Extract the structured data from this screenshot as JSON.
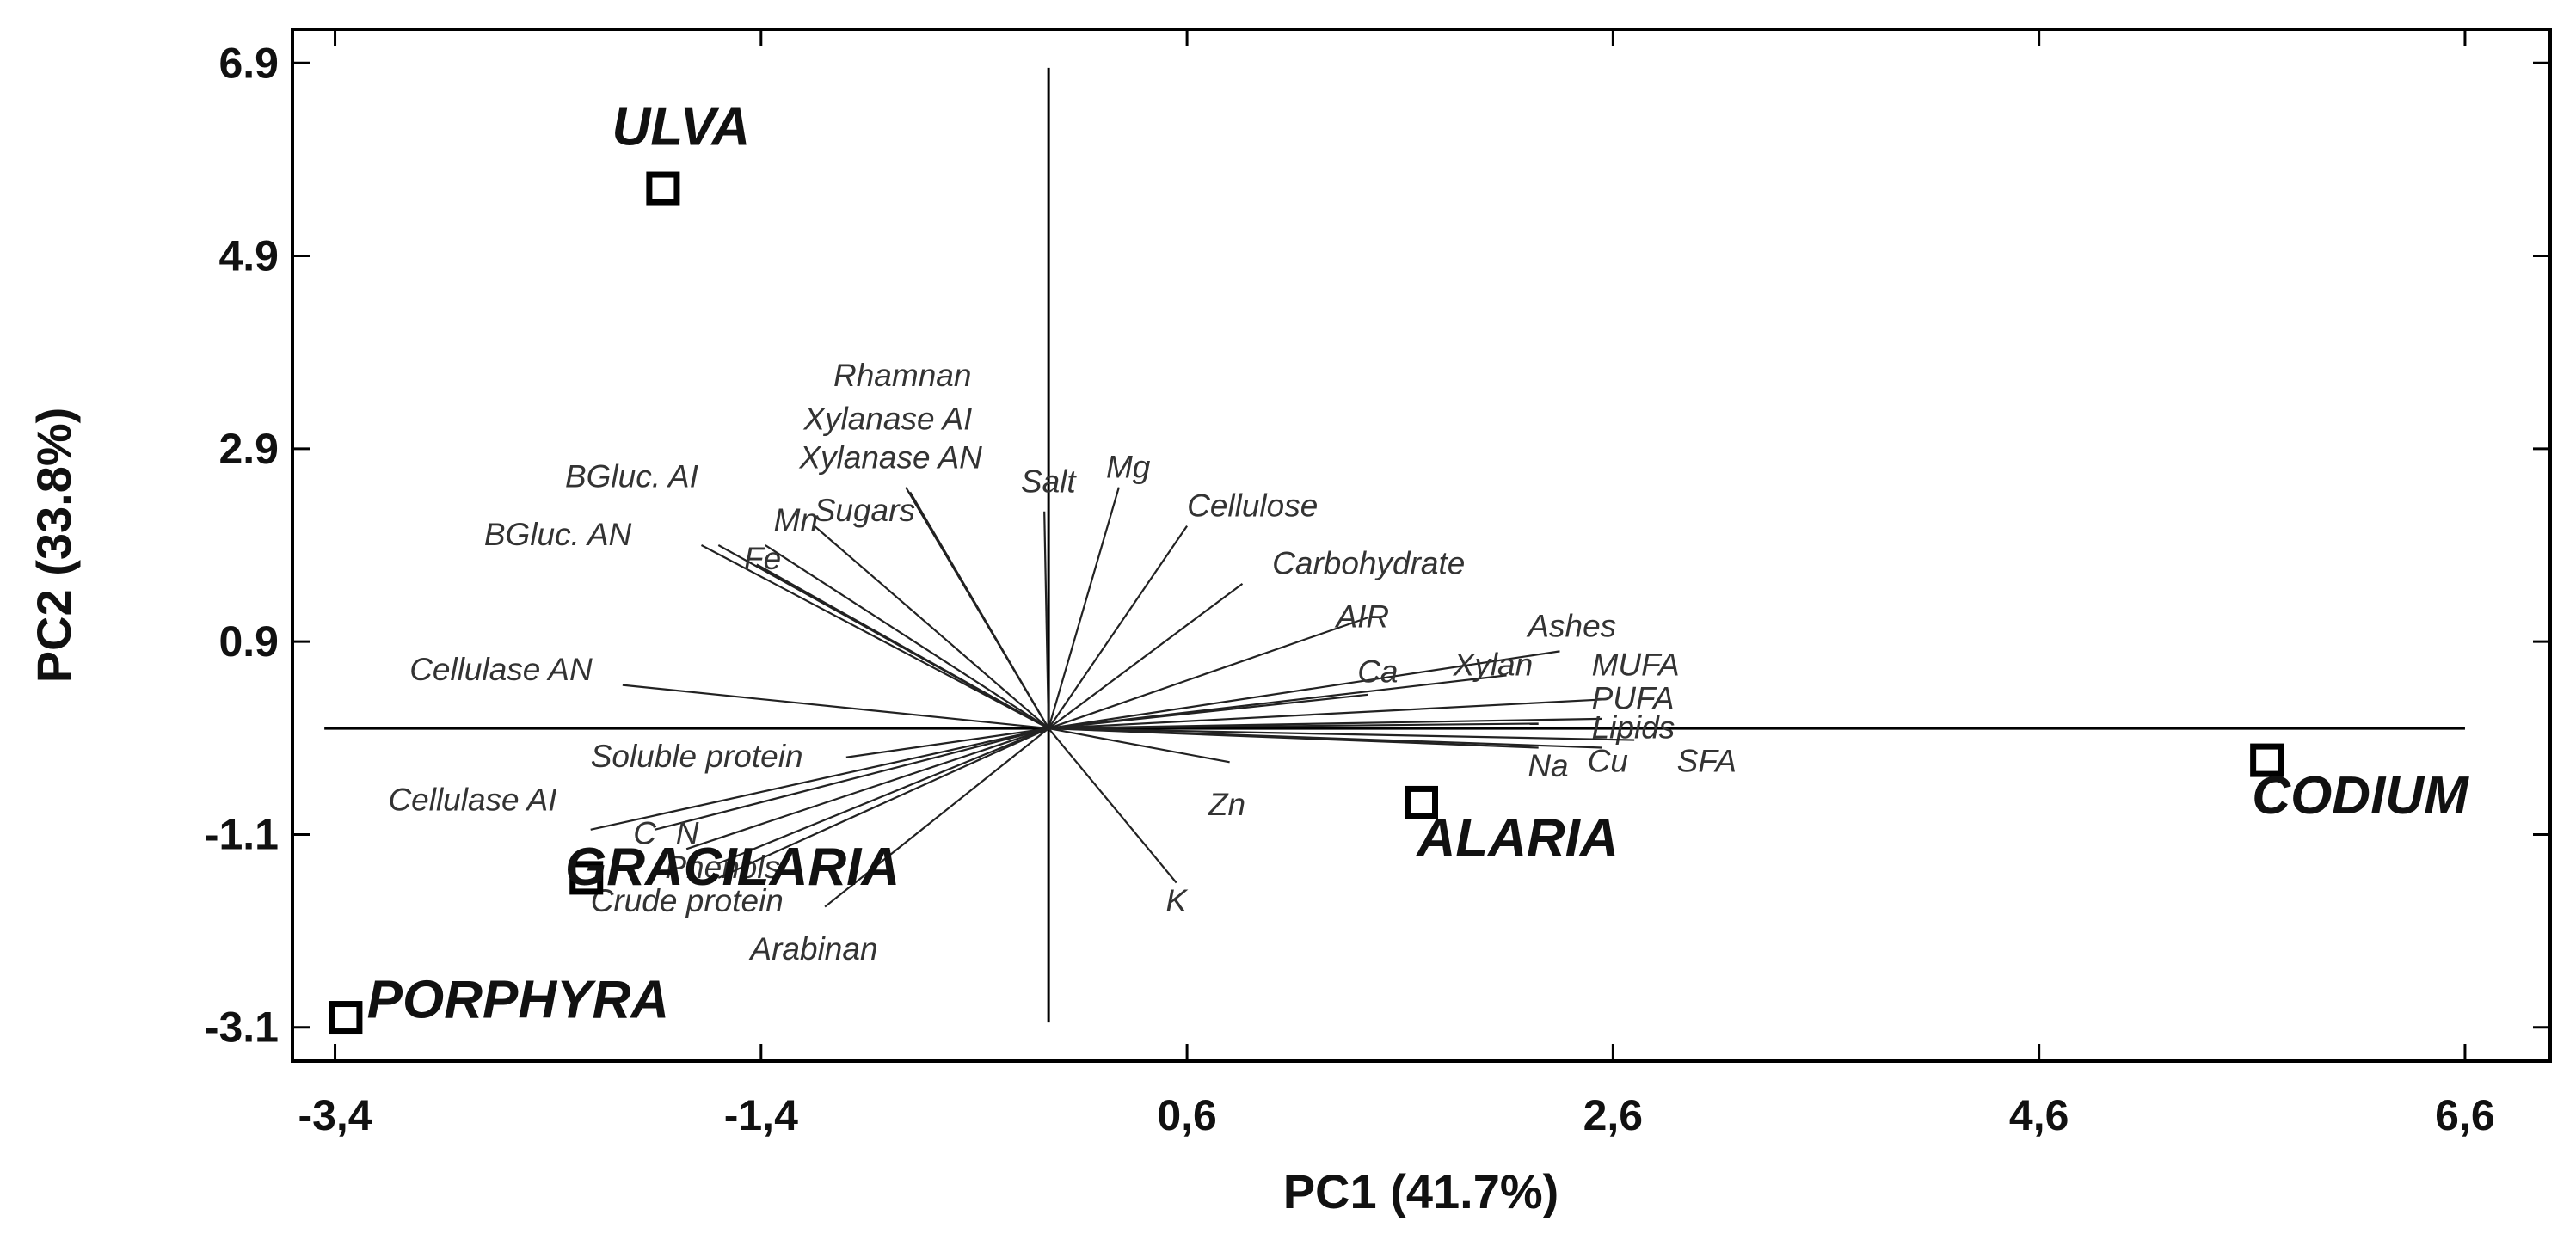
{
  "chart_data": {
    "type": "scatter",
    "subtype": "pca-biplot",
    "xlabel": "PC1 (41.7%)",
    "ylabel": "PC2 (33.8%)",
    "xlim": [
      -3.6,
      7.0
    ],
    "ylim": [
      -3.45,
      7.25
    ],
    "xticks": [
      -3.4,
      -1.4,
      0.6,
      2.6,
      4.6,
      6.6
    ],
    "xtick_labels": [
      "-3,4",
      "-1,4",
      "0,6",
      "2,6",
      "4,6",
      "6,6"
    ],
    "yticks": [
      -3.1,
      -1.1,
      0.9,
      2.9,
      4.9,
      6.9
    ],
    "ytick_labels": [
      "-3.1",
      "-1.1",
      "0.9",
      "2.9",
      "4.9",
      "6.9"
    ],
    "grid": false,
    "origin": [
      -0.05,
      0.0
    ],
    "samples": [
      {
        "name": "ULVA",
        "x": -1.86,
        "y": 5.6,
        "label_x": -2.1,
        "label_y": 6.05
      },
      {
        "name": "GRACILARIA",
        "x": -2.22,
        "y": -1.55,
        "label_x": -2.32,
        "label_y": -1.62
      },
      {
        "name": "PORPHYRA",
        "x": -3.35,
        "y": -3.0,
        "label_x": -3.25,
        "label_y": -3.0
      },
      {
        "name": "ALARIA",
        "x": 1.7,
        "y": -0.77,
        "label_x": 1.68,
        "label_y": -1.32
      },
      {
        "name": "CODIUM",
        "x": 5.67,
        "y": -0.33,
        "label_x": 5.6,
        "label_y": -0.88
      }
    ],
    "loadings": [
      {
        "name": "Rhamnan",
        "x": -0.72,
        "y": 2.5,
        "label_x": -1.06,
        "label_y": 3.55
      },
      {
        "name": "Xylanase AI",
        "x": -0.7,
        "y": 2.45,
        "label_x": -1.2,
        "label_y": 3.1
      },
      {
        "name": "Xylanase AN",
        "x": -0.68,
        "y": 2.35,
        "label_x": -1.22,
        "label_y": 2.7
      },
      {
        "name": "BGluc. AI",
        "x": -1.6,
        "y": 1.9,
        "label_x": -2.32,
        "label_y": 2.5
      },
      {
        "name": "BGluc. AN",
        "x": -1.68,
        "y": 1.9,
        "label_x": -2.7,
        "label_y": 1.9
      },
      {
        "name": "Mn",
        "x": -1.38,
        "y": 1.9,
        "label_x": -1.34,
        "label_y": 2.05
      },
      {
        "name": "Sugars",
        "x": -1.15,
        "y": 2.1,
        "label_x": -1.15,
        "label_y": 2.15
      },
      {
        "name": "Fe",
        "x": -1.42,
        "y": 1.7,
        "label_x": -1.48,
        "label_y": 1.65
      },
      {
        "name": "Salt",
        "x": -0.07,
        "y": 2.25,
        "label_x": -0.18,
        "label_y": 2.45
      },
      {
        "name": "Mg",
        "x": 0.28,
        "y": 2.5,
        "label_x": 0.22,
        "label_y": 2.6
      },
      {
        "name": "Cellulose",
        "x": 0.6,
        "y": 2.1,
        "label_x": 0.6,
        "label_y": 2.2
      },
      {
        "name": "Carbohydrate",
        "x": 0.86,
        "y": 1.5,
        "label_x": 1.0,
        "label_y": 1.6
      },
      {
        "name": "AIR",
        "x": 1.45,
        "y": 1.15,
        "label_x": 1.3,
        "label_y": 1.05
      },
      {
        "name": "Ashes",
        "x": 2.35,
        "y": 0.8,
        "label_x": 2.2,
        "label_y": 0.95
      },
      {
        "name": "Xylan",
        "x": 2.1,
        "y": 0.55,
        "label_x": 1.85,
        "label_y": 0.55
      },
      {
        "name": "Ca",
        "x": 1.45,
        "y": 0.35,
        "label_x": 1.4,
        "label_y": 0.48
      },
      {
        "name": "MUFA",
        "x": 2.55,
        "y": 0.3,
        "label_x": 2.5,
        "label_y": 0.55
      },
      {
        "name": "PUFA",
        "x": 2.55,
        "y": 0.1,
        "label_x": 2.5,
        "label_y": 0.2
      },
      {
        "name": "Lipids",
        "x": 2.25,
        "y": 0.05,
        "label_x": 2.5,
        "label_y": -0.1
      },
      {
        "name": "Na",
        "x": 2.25,
        "y": -0.2,
        "label_x": 2.2,
        "label_y": -0.5
      },
      {
        "name": "Cu",
        "x": 2.55,
        "y": -0.2,
        "label_x": 2.48,
        "label_y": -0.45
      },
      {
        "name": "SFA",
        "x": 2.7,
        "y": -0.12,
        "label_x": 2.9,
        "label_y": -0.45
      },
      {
        "name": "Zn",
        "x": 0.8,
        "y": -0.35,
        "label_x": 0.7,
        "label_y": -0.9
      },
      {
        "name": "K",
        "x": 0.55,
        "y": -1.6,
        "label_x": 0.5,
        "label_y": -1.9
      },
      {
        "name": "Cellulase AN",
        "x": -2.05,
        "y": 0.45,
        "label_x": -3.05,
        "label_y": 0.5
      },
      {
        "name": "Soluble protein",
        "x": -1.0,
        "y": -0.3,
        "label_x": -2.2,
        "label_y": -0.4
      },
      {
        "name": "Cellulase AI",
        "x": -2.2,
        "y": -1.05,
        "label_x": -3.15,
        "label_y": -0.85
      },
      {
        "name": "C",
        "x": -1.9,
        "y": -1.05,
        "label_x": -2.0,
        "label_y": -1.2
      },
      {
        "name": "N",
        "x": -1.75,
        "y": -1.25,
        "label_x": -1.8,
        "label_y": -1.2
      },
      {
        "name": "Phenols",
        "x": -1.6,
        "y": -1.4,
        "label_x": -1.85,
        "label_y": -1.55
      },
      {
        "name": "Crude protein",
        "x": -1.6,
        "y": -1.55,
        "label_x": -2.2,
        "label_y": -1.9
      },
      {
        "name": "Arabinan",
        "x": -1.1,
        "y": -1.85,
        "label_x": -1.45,
        "label_y": -2.4
      }
    ]
  }
}
